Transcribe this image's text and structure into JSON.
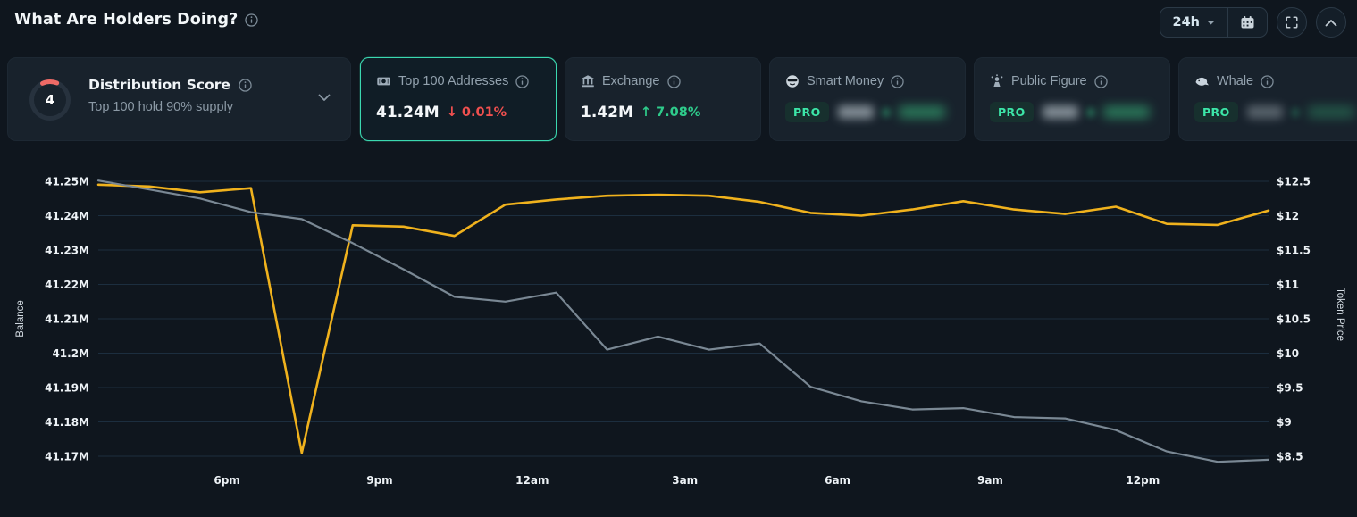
{
  "header": {
    "title": "What Are Holders Doing?",
    "time_range": "24h"
  },
  "cards": {
    "distribution": {
      "score": "4",
      "title": "Distribution Score",
      "subtitle": "Top 100 hold 90% supply",
      "score_color": "#ee6a66"
    },
    "top100": {
      "label": "Top 100 Addresses",
      "value": "41.24M",
      "delta": "↓ 0.01%",
      "direction": "down"
    },
    "exchange": {
      "label": "Exchange",
      "value": "1.42M",
      "delta": "↑ 7.08%",
      "direction": "up"
    },
    "smart_money": {
      "label": "Smart Money",
      "badge": "PRO"
    },
    "public_figure": {
      "label": "Public Figure",
      "badge": "PRO"
    },
    "whale": {
      "label": "Whale",
      "badge": "PRO"
    }
  },
  "colors": {
    "background": "#0f161e",
    "card": "#18222c",
    "selected_border": "#3bd8b0",
    "balance_line": "#f0b21d",
    "price_line": "#7a8894",
    "gridline": "#1c2e3f",
    "red": "#f0504f",
    "green": "#2ecb8b",
    "pro_green": "#3ce6a8"
  },
  "chart_data": {
    "type": "line",
    "x_axis": {
      "ticks": [
        "6pm",
        "9pm",
        "12am",
        "3am",
        "6am",
        "9am",
        "12pm"
      ],
      "tick_hours": [
        2.53,
        5.53,
        8.53,
        11.53,
        14.53,
        17.53,
        20.53
      ],
      "range_hours": [
        0,
        23
      ],
      "grid": "horizontal-only"
    },
    "left_axis": {
      "label": "Balance",
      "ticks": [
        "41.25M",
        "41.24M",
        "41.23M",
        "41.22M",
        "41.21M",
        "41.2M",
        "41.19M",
        "41.18M",
        "41.17M"
      ],
      "min": 41.17,
      "max": 41.25
    },
    "right_axis": {
      "label": "Token Price",
      "ticks": [
        "$12.5",
        "$12",
        "$11.5",
        "$11",
        "$10.5",
        "$10",
        "$9.5",
        "$9",
        "$8.5"
      ],
      "min": 8.5,
      "max": 12.5
    },
    "series": [
      {
        "name": "balance",
        "axis": "left",
        "color": "#f0b21d",
        "width": 2.6,
        "points": [
          [
            0,
            41.249
          ],
          [
            1,
            41.2485
          ],
          [
            2,
            41.2468
          ],
          [
            3,
            41.248
          ],
          [
            4,
            41.171
          ],
          [
            5,
            41.2372
          ],
          [
            6,
            41.2368
          ],
          [
            7,
            41.2341
          ],
          [
            8,
            41.2432
          ],
          [
            9,
            41.2447
          ],
          [
            10,
            41.2458
          ],
          [
            11,
            41.2461
          ],
          [
            12,
            41.2458
          ],
          [
            13,
            41.244
          ],
          [
            14,
            41.2408
          ],
          [
            15,
            41.24
          ],
          [
            16,
            41.2418
          ],
          [
            17,
            41.2442
          ],
          [
            18,
            41.2418
          ],
          [
            19,
            41.2405
          ],
          [
            20,
            41.2426
          ],
          [
            21,
            41.2376
          ],
          [
            22,
            41.2373
          ],
          [
            23,
            41.2415
          ]
        ]
      },
      {
        "name": "token_price",
        "axis": "right",
        "color": "#7a8894",
        "width": 2.2,
        "points": [
          [
            0,
            12.51
          ],
          [
            1,
            12.38
          ],
          [
            2,
            12.25
          ],
          [
            3,
            12.05
          ],
          [
            4,
            11.95
          ],
          [
            5,
            11.6
          ],
          [
            6,
            11.22
          ],
          [
            7,
            10.82
          ],
          [
            8,
            10.75
          ],
          [
            9,
            10.88
          ],
          [
            10,
            10.05
          ],
          [
            11,
            10.24
          ],
          [
            12,
            10.05
          ],
          [
            13,
            10.14
          ],
          [
            14,
            9.51
          ],
          [
            15,
            9.3
          ],
          [
            16,
            9.18
          ],
          [
            17,
            9.2
          ],
          [
            18,
            9.07
          ],
          [
            19,
            9.05
          ],
          [
            20,
            8.88
          ],
          [
            21,
            8.57
          ],
          [
            22,
            8.42
          ],
          [
            23,
            8.45
          ]
        ]
      }
    ]
  }
}
